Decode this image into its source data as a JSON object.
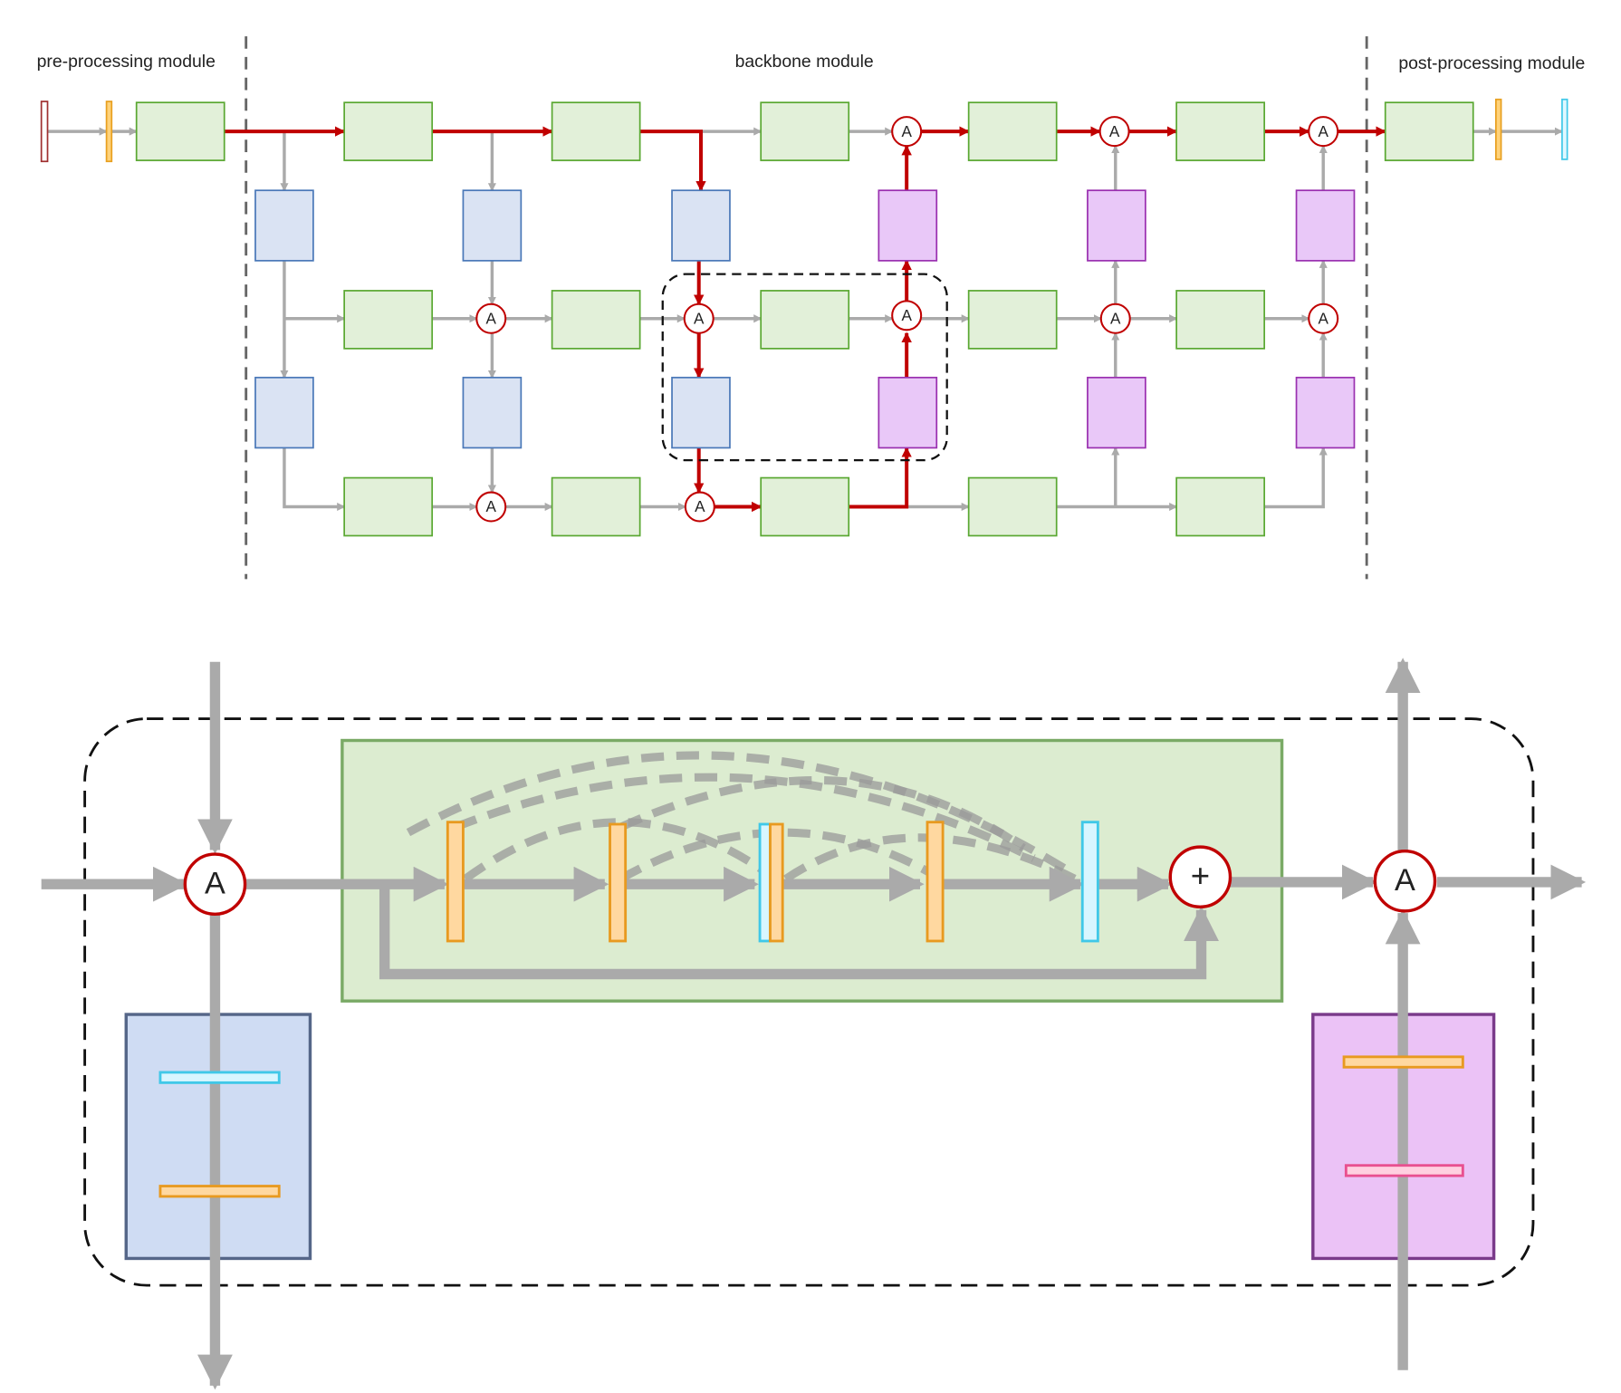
{
  "modules": {
    "pre": "pre-processing module",
    "backbone": "backbone module",
    "post": "post-processing module"
  },
  "operators": {
    "aggregate": "A",
    "add": "+"
  }
}
